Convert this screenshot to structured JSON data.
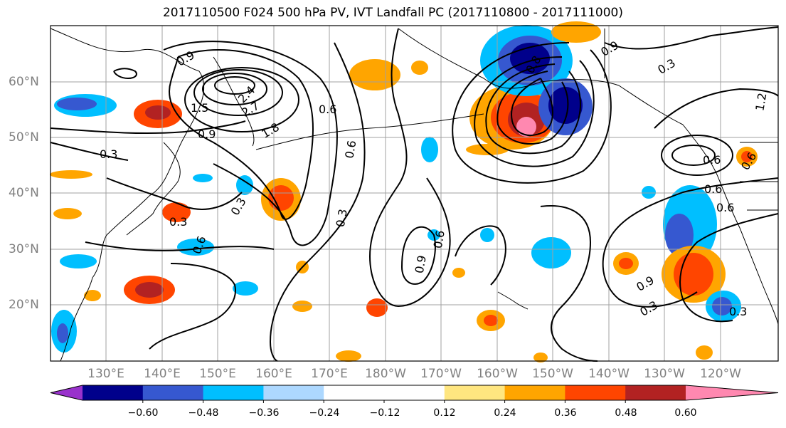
{
  "title": "2017110500 F024 500 hPa PV, IVT Landfall PC (2017110800 - 2017111000)",
  "lat_labels": [
    "60°N",
    "50°N",
    "40°N",
    "30°N",
    "20°N"
  ],
  "lon_labels": [
    "130°E",
    "140°E",
    "150°E",
    "160°E",
    "170°E",
    "180°W",
    "170°W",
    "160°W",
    "150°W",
    "140°W",
    "130°W",
    "120°W"
  ],
  "colorbar": {
    "colors": [
      "#9932cc",
      "#00008b",
      "#3658d0",
      "#00bfff",
      "#add8ff",
      "#ffffff",
      "#ffffff",
      "#ffe680",
      "#ffa500",
      "#ff4500",
      "#b22222",
      "#ff88b0"
    ],
    "ticks": [
      "−0.60",
      "−0.48",
      "−0.36",
      "−0.24",
      "−0.12",
      "0.12",
      "0.24",
      "0.36",
      "0.48",
      "0.60"
    ]
  },
  "contour_labels": [
    "0.9",
    "1.5",
    "2.4",
    "2.7",
    "1.8",
    "0.9",
    "0.3",
    "0.6",
    "0.6",
    "0.6",
    "0.3",
    "0.3",
    "0.6",
    "0.9",
    "0.6",
    "0.3",
    "0.6",
    "0.9",
    "1.2",
    "0.6",
    "0.6",
    "0.9",
    "0.3",
    "0.3",
    "0.3",
    "0.8"
  ],
  "icons": {
    "colorbar_left": "triangle-arrow",
    "colorbar_right": "triangle-arrow"
  }
}
